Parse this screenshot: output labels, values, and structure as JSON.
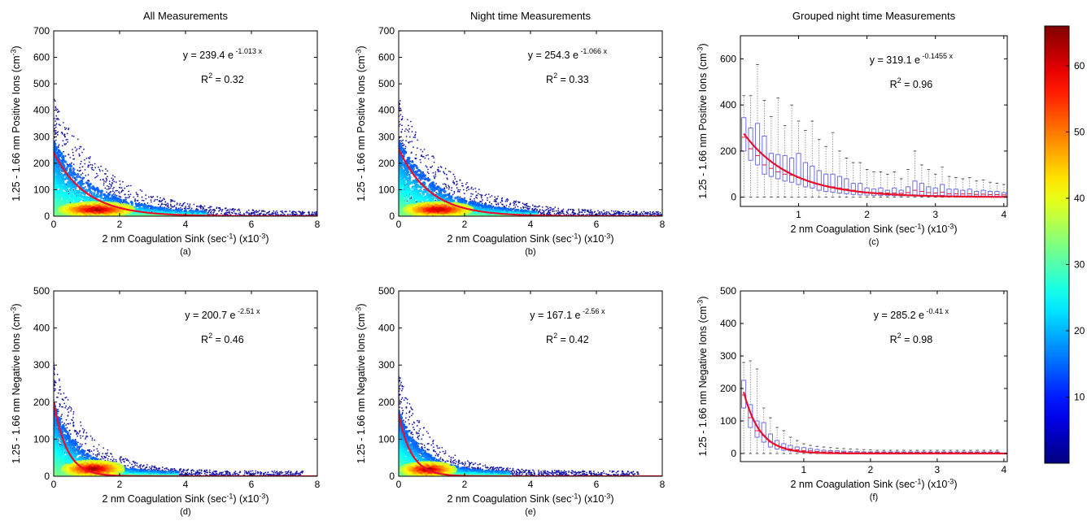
{
  "chart_data": [
    {
      "id": "a",
      "type": "scatter",
      "density": true,
      "title": "All Measurements",
      "xlabel": "2 nm Coagulation Sink (sec^-1) (x10^-3)",
      "ylabel": "1.25 - 1.66 nm Positive Ions (cm^-3)",
      "caption": "(a)",
      "xlim": [
        0,
        8
      ],
      "ylim": [
        0,
        700
      ],
      "xticks": [
        0,
        2,
        4,
        6,
        8
      ],
      "yticks": [
        0,
        100,
        200,
        300,
        400,
        500,
        600,
        700
      ],
      "fit": {
        "a": 239.4,
        "b": 1.013,
        "equation_coef": "y = 239.4 e",
        "equation_exp": "-1.013 x",
        "r2": "0.32"
      },
      "cloud": {
        "y0": 380,
        "k": 0.62,
        "spread": 1.1,
        "core": [
          1.3,
          25
        ],
        "seed": 11
      }
    },
    {
      "id": "b",
      "type": "scatter",
      "density": true,
      "title": "Night time Measurements",
      "xlabel": "2 nm Coagulation Sink (sec^-1) (x10^-3)",
      "ylabel": "1.25 - 1.66 nm Positive Ions (cm^-3)",
      "caption": "(b)",
      "xlim": [
        0,
        8
      ],
      "ylim": [
        0,
        700
      ],
      "xticks": [
        0,
        2,
        4,
        6,
        8
      ],
      "yticks": [
        0,
        100,
        200,
        300,
        400,
        500,
        600,
        700
      ],
      "fit": {
        "a": 254.3,
        "b": 1.066,
        "equation_coef": "y = 254.3 e",
        "equation_exp": "-1.066 x",
        "r2": "0.33"
      },
      "cloud": {
        "y0": 380,
        "k": 0.65,
        "spread": 1.0,
        "core": [
          1.2,
          25
        ],
        "seed": 23
      }
    },
    {
      "id": "c",
      "type": "box",
      "title": "Grouped night time Measurements",
      "xlabel": "2 nm Coagulation Sink (sec^-1) (x10^-3)",
      "ylabel": "1.25 - 1.66 nm Positive Ions (cm^-3)",
      "caption": "(c)",
      "xlim": [
        0.15,
        4.05
      ],
      "ylim": [
        -40,
        700
      ],
      "xticks": [
        1,
        2,
        3,
        4
      ],
      "yticks": [
        0,
        200,
        400,
        600
      ],
      "fit": {
        "a": 319.1,
        "b": 0.1455,
        "equation_coef": "y = 319.1 e",
        "equation_exp": "-0.1455 x",
        "r2": "0.96"
      },
      "boxes": {
        "x_start": 0.2,
        "x_step": 0.1,
        "q3": [
          345,
          300,
          320,
          265,
          190,
          185,
          180,
          170,
          190,
          150,
          135,
          115,
          100,
          100,
          90,
          80,
          60,
          60,
          40,
          35,
          40,
          30,
          40,
          30,
          45,
          70,
          60,
          45,
          40,
          55,
          35,
          35,
          30,
          35,
          25,
          30,
          25,
          25,
          20
        ],
        "median": [
          260,
          210,
          180,
          140,
          125,
          110,
          100,
          95,
          85,
          75,
          65,
          55,
          50,
          45,
          40,
          35,
          30,
          25,
          22,
          20,
          20,
          18,
          18,
          17,
          20,
          30,
          25,
          20,
          18,
          22,
          15,
          15,
          14,
          15,
          12,
          13,
          11,
          11,
          10
        ],
        "q1": [
          200,
          160,
          140,
          100,
          90,
          80,
          70,
          65,
          55,
          45,
          40,
          30,
          25,
          22,
          18,
          15,
          12,
          10,
          9,
          8,
          8,
          7,
          7,
          6,
          8,
          10,
          9,
          8,
          7,
          8,
          6,
          6,
          5,
          6,
          5,
          5,
          4,
          4,
          4
        ],
        "upper_whisker": [
          440,
          440,
          575,
          420,
          350,
          430,
          310,
          400,
          330,
          290,
          330,
          250,
          220,
          280,
          200,
          170,
          150,
          150,
          120,
          110,
          110,
          100,
          110,
          80,
          120,
          200,
          140,
          120,
          100,
          130,
          90,
          85,
          80,
          85,
          70,
          75,
          65,
          60,
          55
        ]
      }
    },
    {
      "id": "d",
      "type": "scatter",
      "density": true,
      "xlabel": "2 nm Coagulation Sink (sec^-1) (x10^-3)",
      "ylabel": "1.25 - 1.66 nm Negative Ions (cm^-3)",
      "caption": "(d)",
      "xlim": [
        0,
        8
      ],
      "ylim": [
        0,
        500
      ],
      "xticks": [
        0,
        2,
        4,
        6,
        8
      ],
      "yticks": [
        0,
        100,
        200,
        300,
        400,
        500
      ],
      "fit": {
        "a": 200.7,
        "b": 2.51,
        "equation_coef": "y = 200.7 e",
        "equation_exp": "-2.51 x",
        "r2": "0.46"
      },
      "cloud": {
        "y0": 260,
        "k": 1.0,
        "spread": 0.9,
        "core": [
          1.2,
          20
        ],
        "seed": 37
      }
    },
    {
      "id": "e",
      "type": "scatter",
      "density": true,
      "xlabel": "2 nm Coagulation Sink (sec^-1) (x10^-3)",
      "ylabel": "1.25 - 1.66 nm Negative Ions (cm^-3)",
      "caption": "(e)",
      "xlim": [
        0,
        8
      ],
      "ylim": [
        0,
        500
      ],
      "xticks": [
        0,
        2,
        4,
        6,
        8
      ],
      "yticks": [
        0,
        100,
        200,
        300,
        400,
        500
      ],
      "fit": {
        "a": 167.1,
        "b": 2.56,
        "equation_coef": "y = 167.1 e",
        "equation_exp": "-2.56 x",
        "r2": "0.42"
      },
      "cloud": {
        "y0": 230,
        "k": 1.05,
        "spread": 0.8,
        "core": [
          0.9,
          18
        ],
        "seed": 53
      }
    },
    {
      "id": "f",
      "type": "box",
      "xlabel": "2 nm Coagulation Sink (sec^-1) (x10^-3)",
      "ylabel": "1.25 - 1.66 nm Negative Ions (cm^-3)",
      "caption": "(f)",
      "xlim": [
        0.05,
        4.05
      ],
      "ylim": [
        -25,
        500
      ],
      "xticks": [
        1,
        2,
        3,
        4
      ],
      "yticks": [
        0,
        100,
        200,
        300,
        400,
        500
      ],
      "fit": {
        "a": 285.2,
        "b": 0.41,
        "equation_coef": "y = 285.2 e",
        "equation_exp": "-0.41 x",
        "r2": "0.98"
      },
      "boxes": {
        "x_start": 0.1,
        "x_step": 0.1,
        "q3": [
          225,
          150,
          100,
          95,
          60,
          40,
          30,
          25,
          20,
          18,
          15,
          12,
          10,
          9,
          8,
          7,
          6,
          6,
          5,
          5,
          5,
          5,
          5,
          5,
          5,
          5,
          5,
          5,
          5,
          5,
          5,
          5,
          5,
          5,
          5,
          5,
          5,
          5,
          5
        ],
        "median": [
          180,
          110,
          70,
          55,
          35,
          25,
          18,
          14,
          11,
          9,
          8,
          6,
          5,
          5,
          4,
          4,
          3,
          3,
          3,
          3,
          3,
          3,
          3,
          3,
          3,
          3,
          3,
          3,
          3,
          3,
          3,
          3,
          3,
          3,
          3,
          3,
          3,
          3,
          3
        ],
        "q1": [
          140,
          80,
          50,
          35,
          20,
          14,
          10,
          8,
          6,
          5,
          4,
          3,
          3,
          2,
          2,
          2,
          1,
          1,
          1,
          1,
          1,
          1,
          1,
          1,
          1,
          1,
          1,
          1,
          1,
          1,
          1,
          1,
          1,
          1,
          1,
          1,
          1,
          1,
          1
        ],
        "upper_whisker": [
          280,
          285,
          260,
          140,
          110,
          80,
          70,
          50,
          40,
          30,
          25,
          22,
          20,
          18,
          16,
          15,
          14,
          13,
          12,
          11,
          10,
          10,
          10,
          10,
          10,
          10,
          10,
          10,
          10,
          10,
          10,
          10,
          10,
          10,
          10,
          10,
          10,
          10,
          10
        ]
      }
    }
  ],
  "colorbar": {
    "min": 0,
    "max": 66,
    "ticks": [
      10,
      20,
      30,
      40,
      50,
      60
    ]
  },
  "colors": {
    "fit_line": "#e8102a",
    "box_edge": "#6f6fe6",
    "whisker": "#7f7f7f",
    "scatter_dot": "#1a1aa8",
    "density_low": "#00008f",
    "density_high": "#800000"
  }
}
